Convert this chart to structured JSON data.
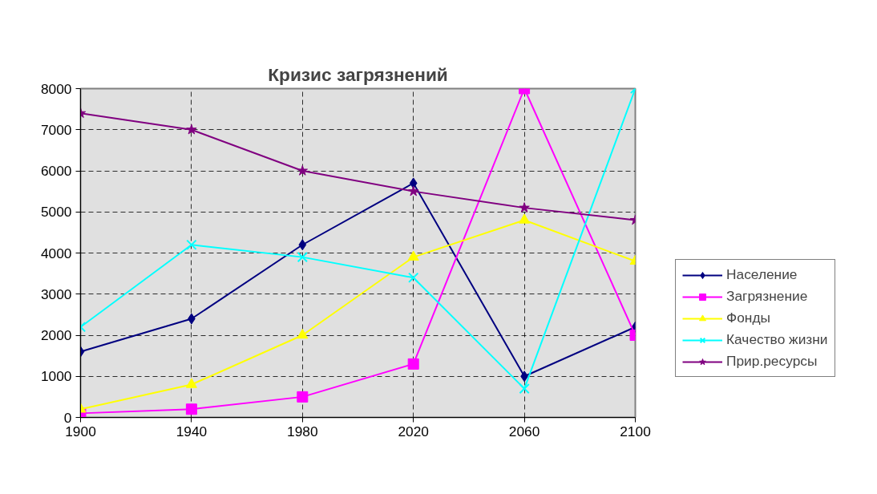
{
  "chart_data": {
    "type": "line",
    "title": "Кризис загрязнений",
    "x": [
      1900,
      1940,
      1980,
      2020,
      2060,
      2100
    ],
    "series": [
      {
        "name": "Население",
        "color": "#000080",
        "marker": "diamond",
        "values": [
          1600,
          2400,
          4200,
          5700,
          1000,
          2200
        ]
      },
      {
        "name": "Загрязнение",
        "color": "#ff00ff",
        "marker": "square",
        "values": [
          100,
          200,
          500,
          1300,
          8000,
          2000
        ]
      },
      {
        "name": "Фонды",
        "color": "#ffff00",
        "marker": "triangle",
        "values": [
          200,
          800,
          2000,
          3900,
          4800,
          3800
        ]
      },
      {
        "name": "Качество жизни",
        "color": "#00ffff",
        "marker": "cross",
        "values": [
          2200,
          4200,
          3900,
          3400,
          700,
          8000
        ]
      },
      {
        "name": "Прир.ресурсы",
        "color": "#800080",
        "marker": "star",
        "values": [
          7400,
          7000,
          6000,
          5500,
          5100,
          4800
        ]
      }
    ],
    "xlim": [
      1900,
      2100
    ],
    "xticks": [
      1900,
      1940,
      1980,
      2020,
      2060,
      2100
    ],
    "ylim": [
      0,
      8000
    ],
    "yticks": [
      0,
      1000,
      2000,
      3000,
      4000,
      5000,
      6000,
      7000,
      8000
    ],
    "grid": true,
    "legend": "right",
    "line_style": "solid"
  }
}
